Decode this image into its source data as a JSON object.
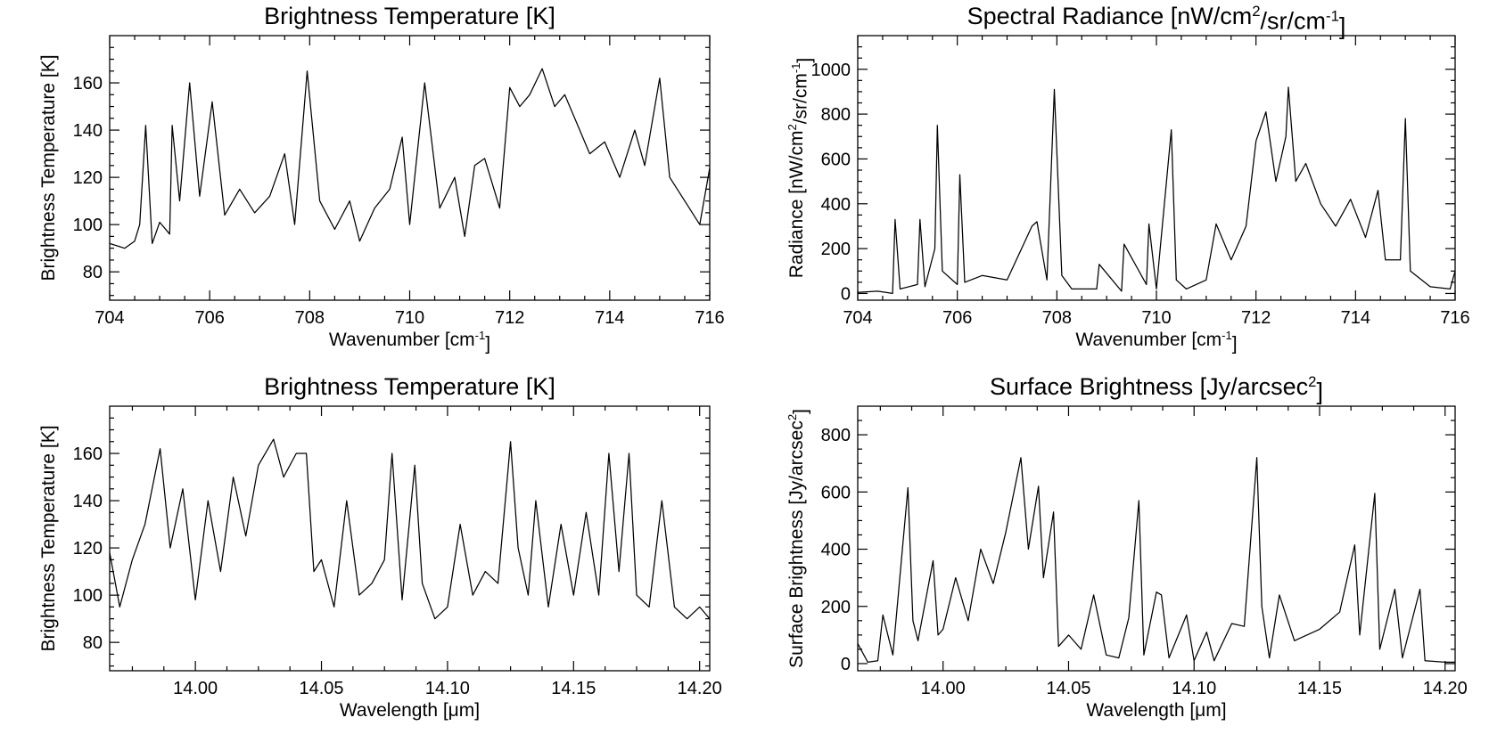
{
  "chart_data": [
    {
      "type": "line",
      "title": "Brightness Temperature [K]",
      "xlabel": "Wavenumber [cm",
      "xlabel_sup": "-1",
      "xlabel_tail": "]",
      "ylabel": "Brightness Temperature [K]",
      "xlim": [
        704,
        716
      ],
      "ylim": [
        68,
        180
      ],
      "xticks": [
        704,
        706,
        708,
        710,
        712,
        714,
        716
      ],
      "xticklabels": [
        "704",
        "706",
        "708",
        "710",
        "712",
        "714",
        "716"
      ],
      "yticks": [
        80,
        100,
        120,
        140,
        160
      ],
      "yticklabels": [
        "80",
        "100",
        "120",
        "140",
        "160"
      ],
      "grid": false,
      "series": [
        {
          "x": [
            704.0,
            704.15,
            704.3,
            704.5,
            704.6,
            704.72,
            704.85,
            705.0,
            705.2,
            705.25,
            705.4,
            705.6,
            705.8,
            706.05,
            706.3,
            706.6,
            706.9,
            707.2,
            707.5,
            707.7,
            707.95,
            708.2,
            708.5,
            708.8,
            709.0,
            709.3,
            709.6,
            709.85,
            710.0,
            710.3,
            710.6,
            710.9,
            711.1,
            711.3,
            711.5,
            711.8,
            712.0,
            712.2,
            712.4,
            712.65,
            712.9,
            713.1,
            713.3,
            713.6,
            713.9,
            714.2,
            714.5,
            714.7,
            715.0,
            715.2,
            715.5,
            715.8,
            716.0
          ],
          "y": [
            92,
            91,
            90,
            93,
            100,
            142,
            92,
            101,
            96,
            142,
            110,
            160,
            112,
            152,
            104,
            115,
            105,
            112,
            130,
            100,
            165,
            110,
            98,
            110,
            93,
            107,
            115,
            137,
            100,
            160,
            107,
            120,
            95,
            125,
            128,
            107,
            158,
            150,
            155,
            166,
            150,
            155,
            145,
            130,
            135,
            120,
            140,
            125,
            162,
            120,
            110,
            100,
            124
          ]
        }
      ]
    },
    {
      "type": "line",
      "title": "Spectral Radiance [nW/cm",
      "title_sup1": "2",
      "title_mid": "/sr/cm",
      "title_sup2": "-1",
      "title_tail": "]",
      "xlabel": "Wavenumber [cm",
      "xlabel_sup": "-1",
      "xlabel_tail": "]",
      "ylabel": "Radiance [nW/cm",
      "ylabel_sup1": "2",
      "ylabel_mid": "/sr/cm",
      "ylabel_sup2": "-1",
      "ylabel_tail": "]",
      "xlim": [
        704,
        716
      ],
      "ylim": [
        -30,
        1150
      ],
      "xticks": [
        704,
        706,
        708,
        710,
        712,
        714,
        716
      ],
      "xticklabels": [
        "704",
        "706",
        "708",
        "710",
        "712",
        "714",
        "716"
      ],
      "yticks": [
        0,
        200,
        400,
        600,
        800,
        1000
      ],
      "yticklabels": [
        "0",
        "200",
        "400",
        "600",
        "800",
        "1000"
      ],
      "grid": false,
      "series": [
        {
          "x": [
            704.0,
            704.4,
            704.7,
            704.75,
            704.85,
            705.2,
            705.25,
            705.35,
            705.55,
            705.6,
            705.7,
            706.0,
            706.05,
            706.15,
            706.5,
            707.0,
            707.5,
            707.6,
            707.8,
            707.95,
            708.1,
            708.3,
            708.8,
            708.85,
            709.3,
            709.35,
            709.8,
            709.85,
            710.0,
            710.3,
            710.4,
            710.6,
            711.0,
            711.2,
            711.5,
            711.8,
            712.0,
            712.2,
            712.4,
            712.6,
            712.65,
            712.8,
            713.0,
            713.3,
            713.6,
            713.9,
            714.2,
            714.45,
            714.6,
            714.9,
            715.0,
            715.1,
            715.5,
            715.9,
            716.0
          ],
          "y": [
            5,
            10,
            0,
            330,
            20,
            40,
            330,
            30,
            200,
            750,
            100,
            40,
            530,
            50,
            80,
            60,
            300,
            320,
            60,
            910,
            80,
            20,
            20,
            130,
            10,
            220,
            40,
            310,
            20,
            730,
            60,
            20,
            60,
            310,
            150,
            300,
            680,
            810,
            500,
            700,
            920,
            500,
            580,
            400,
            300,
            420,
            250,
            460,
            150,
            150,
            780,
            100,
            30,
            20,
            100
          ]
        }
      ]
    },
    {
      "type": "line",
      "title": "Brightness Temperature [K]",
      "xlabel": "Wavelength [",
      "xlabel_greek": "μ",
      "xlabel_tail": "m]",
      "ylabel": "Brightness Temperature [K]",
      "xlim": [
        13.966,
        14.204
      ],
      "ylim": [
        68,
        180
      ],
      "xticks": [
        14.0,
        14.05,
        14.1,
        14.15,
        14.2
      ],
      "xticklabels": [
        "14.00",
        "14.05",
        "14.10",
        "14.15",
        "14.20"
      ],
      "yticks": [
        80,
        100,
        120,
        140,
        160
      ],
      "yticklabels": [
        "80",
        "100",
        "120",
        "140",
        "160"
      ],
      "grid": false,
      "series": [
        {
          "x": [
            13.966,
            13.97,
            13.975,
            13.98,
            13.986,
            13.99,
            13.995,
            14.0,
            14.005,
            14.01,
            14.015,
            14.02,
            14.025,
            14.031,
            14.035,
            14.04,
            14.044,
            14.047,
            14.05,
            14.055,
            14.06,
            14.065,
            14.07,
            14.075,
            14.078,
            14.082,
            14.087,
            14.09,
            14.095,
            14.1,
            14.105,
            14.11,
            14.115,
            14.12,
            14.125,
            14.128,
            14.132,
            14.135,
            14.14,
            14.145,
            14.15,
            14.155,
            14.16,
            14.164,
            14.168,
            14.172,
            14.175,
            14.18,
            14.185,
            14.19,
            14.195,
            14.2,
            14.204
          ],
          "y": [
            118,
            95,
            115,
            130,
            162,
            120,
            145,
            98,
            140,
            110,
            150,
            125,
            155,
            166,
            150,
            160,
            160,
            110,
            115,
            95,
            140,
            100,
            105,
            115,
            160,
            98,
            155,
            105,
            90,
            95,
            130,
            100,
            110,
            105,
            165,
            120,
            100,
            140,
            95,
            130,
            100,
            135,
            100,
            160,
            110,
            160,
            100,
            95,
            140,
            95,
            90,
            95,
            90
          ]
        }
      ]
    },
    {
      "type": "line",
      "title": "Surface Brightness [Jy/arcsec",
      "title_sup1": "2",
      "title_tail": "]",
      "xlabel": "Wavelength [",
      "xlabel_greek": "μ",
      "xlabel_tail": "m]",
      "ylabel": "Surface Brightness [Jy/arcsec",
      "ylabel_sup1": "2",
      "ylabel_tail": "]",
      "xlim": [
        13.966,
        14.204
      ],
      "ylim": [
        -25,
        900
      ],
      "xticks": [
        14.0,
        14.05,
        14.1,
        14.15,
        14.2
      ],
      "xticklabels": [
        "14.00",
        "14.05",
        "14.10",
        "14.15",
        "14.20"
      ],
      "yticks": [
        0,
        200,
        400,
        600,
        800
      ],
      "yticklabels": [
        "0",
        "200",
        "400",
        "600",
        "800"
      ],
      "grid": false,
      "series": [
        {
          "x": [
            13.966,
            13.97,
            13.974,
            13.976,
            13.98,
            13.986,
            13.988,
            13.99,
            13.996,
            13.998,
            14.0,
            14.005,
            14.01,
            14.015,
            14.02,
            14.025,
            14.031,
            14.034,
            14.038,
            14.04,
            14.044,
            14.046,
            14.05,
            14.055,
            14.06,
            14.065,
            14.07,
            14.074,
            14.078,
            14.08,
            14.085,
            14.087,
            14.09,
            14.097,
            14.1,
            14.105,
            14.108,
            14.115,
            14.12,
            14.125,
            14.127,
            14.13,
            14.134,
            14.14,
            14.15,
            14.158,
            14.164,
            14.166,
            14.172,
            14.174,
            14.18,
            14.183,
            14.19,
            14.192,
            14.2,
            14.204
          ],
          "y": [
            70,
            5,
            10,
            170,
            30,
            615,
            150,
            80,
            360,
            100,
            120,
            300,
            150,
            400,
            280,
            460,
            720,
            400,
            620,
            300,
            530,
            60,
            100,
            50,
            240,
            30,
            20,
            160,
            570,
            30,
            250,
            240,
            20,
            170,
            10,
            110,
            10,
            140,
            130,
            720,
            200,
            20,
            240,
            80,
            120,
            180,
            415,
            100,
            595,
            50,
            260,
            20,
            260,
            10,
            5,
            5
          ]
        }
      ]
    }
  ]
}
